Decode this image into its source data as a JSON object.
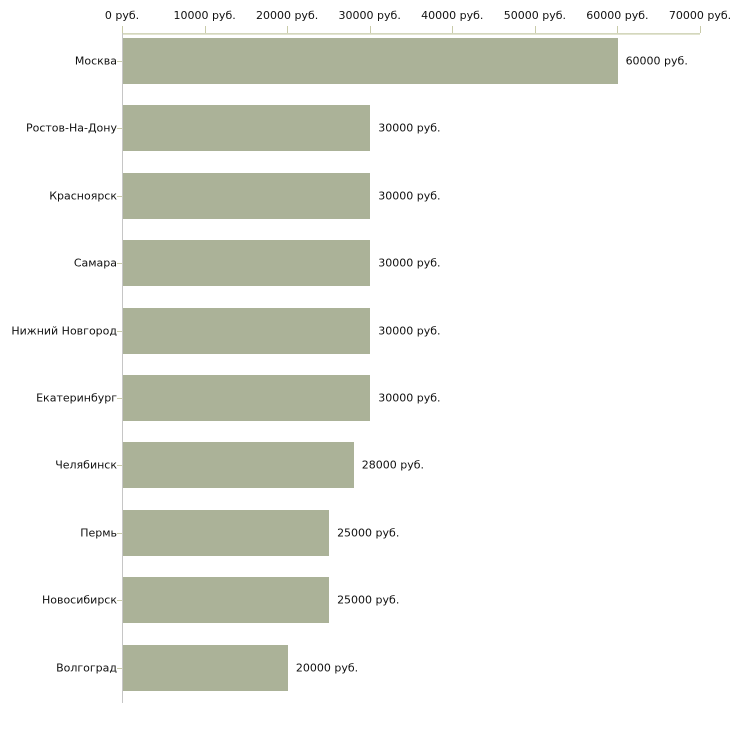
{
  "chart_data": {
    "type": "bar",
    "orientation": "horizontal",
    "title": "",
    "xlabel": "",
    "ylabel": "",
    "xlim": [
      0,
      70000
    ],
    "grid": false,
    "legend": false,
    "bar_color": "#abb298",
    "axis_line_color": "#cdd0b4",
    "tick_color": "#c9cba9",
    "y_axis_color": "#c6c6c6",
    "x_tick_values": [
      0,
      10000,
      20000,
      30000,
      40000,
      50000,
      60000,
      70000
    ],
    "x_tick_labels": [
      "0 руб.",
      "10000 руб.",
      "20000 руб.",
      "30000 руб.",
      "40000 руб.",
      "50000 руб.",
      "60000 руб.",
      "70000 руб."
    ],
    "categories": [
      "Москва",
      "Ростов-На-Дону",
      "Красноярск",
      "Самара",
      "Нижний Новгород",
      "Екатеринбург",
      "Челябинск",
      "Пермь",
      "Новосибирск",
      "Волгоград"
    ],
    "values": [
      60000,
      30000,
      30000,
      30000,
      30000,
      30000,
      28000,
      25000,
      25000,
      20000
    ],
    "value_labels": [
      "60000 руб.",
      "30000 руб.",
      "30000 руб.",
      "30000 руб.",
      "30000 руб.",
      "30000 руб.",
      "28000 руб.",
      "25000 руб.",
      "25000 руб.",
      "20000 руб."
    ]
  }
}
